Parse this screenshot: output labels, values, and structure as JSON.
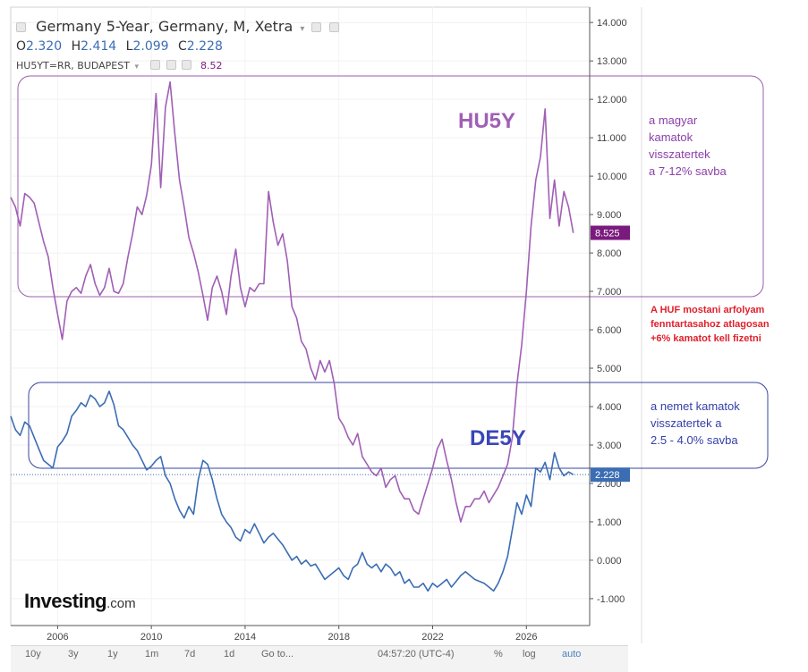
{
  "header": {
    "title": "Germany 5-Year, Germany, M, Xetra",
    "ohlc": [
      {
        "label": "O",
        "value": "2.320"
      },
      {
        "label": "H",
        "value": "2.414"
      },
      {
        "label": "L",
        "value": "2.099"
      },
      {
        "label": "C",
        "value": "2.228"
      }
    ],
    "sub_title": "HU5YT=RR, BUDAPEST",
    "sub_value": "8.52"
  },
  "chart_data": {
    "type": "line",
    "xlim": [
      2004.0,
      2028.7
    ],
    "ylim": [
      -1.7,
      14.4
    ],
    "yticks": [
      "14.000",
      "13.000",
      "12.000",
      "11.000",
      "10.000",
      "9.000",
      "8.000",
      "7.000",
      "6.000",
      "5.000",
      "4.000",
      "3.000",
      "2.000",
      "1.000",
      "0.000",
      "-1.000"
    ],
    "xticks": [
      "2006",
      "2010",
      "2014",
      "2018",
      "2022",
      "2026"
    ],
    "series": [
      {
        "name": "HU5Y",
        "color": "#a05fb5",
        "last_label": "8.525",
        "label_color": "#7a1a7e",
        "points": [
          [
            2004.0,
            9.45
          ],
          [
            2004.2,
            9.2
          ],
          [
            2004.4,
            8.7
          ],
          [
            2004.6,
            9.55
          ],
          [
            2004.8,
            9.45
          ],
          [
            2005.0,
            9.3
          ],
          [
            2005.2,
            8.8
          ],
          [
            2005.4,
            8.3
          ],
          [
            2005.6,
            7.9
          ],
          [
            2005.8,
            7.1
          ],
          [
            2006.0,
            6.4
          ],
          [
            2006.2,
            5.75
          ],
          [
            2006.4,
            6.75
          ],
          [
            2006.6,
            7.0
          ],
          [
            2006.8,
            7.1
          ],
          [
            2007.0,
            6.95
          ],
          [
            2007.2,
            7.4
          ],
          [
            2007.4,
            7.7
          ],
          [
            2007.6,
            7.2
          ],
          [
            2007.8,
            6.9
          ],
          [
            2008.0,
            7.1
          ],
          [
            2008.2,
            7.6
          ],
          [
            2008.4,
            7.0
          ],
          [
            2008.6,
            6.95
          ],
          [
            2008.8,
            7.2
          ],
          [
            2009.0,
            7.9
          ],
          [
            2009.2,
            8.5
          ],
          [
            2009.4,
            9.2
          ],
          [
            2009.6,
            9.0
          ],
          [
            2009.8,
            9.5
          ],
          [
            2010.0,
            10.3
          ],
          [
            2010.2,
            12.15
          ],
          [
            2010.4,
            9.7
          ],
          [
            2010.6,
            11.8
          ],
          [
            2010.8,
            12.45
          ],
          [
            2011.0,
            11.1
          ],
          [
            2011.2,
            9.9
          ],
          [
            2011.4,
            9.2
          ],
          [
            2011.6,
            8.4
          ],
          [
            2011.8,
            8.0
          ],
          [
            2012.0,
            7.5
          ],
          [
            2012.2,
            6.9
          ],
          [
            2012.4,
            6.25
          ],
          [
            2012.6,
            7.1
          ],
          [
            2012.8,
            7.4
          ],
          [
            2013.0,
            7.0
          ],
          [
            2013.2,
            6.4
          ],
          [
            2013.4,
            7.4
          ],
          [
            2013.6,
            8.1
          ],
          [
            2013.8,
            7.1
          ],
          [
            2014.0,
            6.6
          ],
          [
            2014.2,
            7.1
          ],
          [
            2014.4,
            7.0
          ],
          [
            2014.6,
            7.2
          ],
          [
            2014.8,
            7.2
          ],
          [
            2015.0,
            9.6
          ],
          [
            2015.2,
            8.8
          ],
          [
            2015.4,
            8.2
          ],
          [
            2015.6,
            8.5
          ],
          [
            2015.8,
            7.8
          ],
          [
            2016.0,
            6.6
          ],
          [
            2016.2,
            6.3
          ],
          [
            2016.4,
            5.7
          ],
          [
            2016.6,
            5.5
          ],
          [
            2016.8,
            5.0
          ],
          [
            2017.0,
            4.7
          ],
          [
            2017.2,
            5.2
          ],
          [
            2017.4,
            4.9
          ],
          [
            2017.6,
            5.2
          ],
          [
            2017.8,
            4.6
          ],
          [
            2018.0,
            3.7
          ],
          [
            2018.2,
            3.5
          ],
          [
            2018.4,
            3.2
          ],
          [
            2018.6,
            3.0
          ],
          [
            2018.8,
            3.3
          ],
          [
            2019.0,
            2.7
          ],
          [
            2019.2,
            2.5
          ],
          [
            2019.4,
            2.3
          ],
          [
            2019.6,
            2.2
          ],
          [
            2019.8,
            2.4
          ],
          [
            2020.0,
            1.9
          ],
          [
            2020.2,
            2.1
          ],
          [
            2020.4,
            2.2
          ],
          [
            2020.6,
            1.8
          ],
          [
            2020.8,
            1.6
          ],
          [
            2021.0,
            1.6
          ],
          [
            2021.2,
            1.3
          ],
          [
            2021.4,
            1.2
          ],
          [
            2021.6,
            1.6
          ],
          [
            2021.8,
            2.0
          ],
          [
            2022.0,
            2.4
          ],
          [
            2022.2,
            2.9
          ],
          [
            2022.4,
            3.15
          ],
          [
            2022.6,
            2.6
          ],
          [
            2022.8,
            2.1
          ],
          [
            2023.0,
            1.5
          ],
          [
            2023.2,
            1.0
          ],
          [
            2023.4,
            1.4
          ],
          [
            2023.6,
            1.4
          ],
          [
            2023.8,
            1.6
          ],
          [
            2024.0,
            1.6
          ],
          [
            2024.2,
            1.8
          ],
          [
            2024.4,
            1.5
          ],
          [
            2024.6,
            1.7
          ],
          [
            2024.8,
            1.9
          ],
          [
            2025.0,
            2.2
          ],
          [
            2025.2,
            2.5
          ],
          [
            2025.4,
            3.2
          ],
          [
            2025.6,
            4.6
          ],
          [
            2025.8,
            5.6
          ],
          [
            2026.0,
            7.0
          ],
          [
            2026.2,
            8.7
          ],
          [
            2026.4,
            9.9
          ],
          [
            2026.6,
            10.5
          ],
          [
            2026.8,
            11.75
          ],
          [
            2027.0,
            8.9
          ],
          [
            2027.2,
            9.9
          ],
          [
            2027.4,
            8.7
          ],
          [
            2027.6,
            9.6
          ],
          [
            2027.8,
            9.2
          ],
          [
            2028.0,
            8.52
          ]
        ]
      },
      {
        "name": "DE5Y",
        "color": "#3b6db3",
        "last_label": "2.228",
        "label_color": "#3b6db3",
        "points": [
          [
            2004.0,
            3.75
          ],
          [
            2004.2,
            3.4
          ],
          [
            2004.4,
            3.25
          ],
          [
            2004.6,
            3.6
          ],
          [
            2004.8,
            3.5
          ],
          [
            2005.0,
            3.2
          ],
          [
            2005.2,
            2.9
          ],
          [
            2005.4,
            2.6
          ],
          [
            2005.6,
            2.5
          ],
          [
            2005.8,
            2.4
          ],
          [
            2006.0,
            2.95
          ],
          [
            2006.2,
            3.1
          ],
          [
            2006.4,
            3.3
          ],
          [
            2006.6,
            3.75
          ],
          [
            2006.8,
            3.9
          ],
          [
            2007.0,
            4.1
          ],
          [
            2007.2,
            4.0
          ],
          [
            2007.4,
            4.3
          ],
          [
            2007.6,
            4.2
          ],
          [
            2007.8,
            4.0
          ],
          [
            2008.0,
            4.1
          ],
          [
            2008.2,
            4.4
          ],
          [
            2008.4,
            4.05
          ],
          [
            2008.6,
            3.5
          ],
          [
            2008.8,
            3.4
          ],
          [
            2009.0,
            3.2
          ],
          [
            2009.2,
            3.0
          ],
          [
            2009.4,
            2.85
          ],
          [
            2009.6,
            2.6
          ],
          [
            2009.8,
            2.35
          ],
          [
            2010.0,
            2.45
          ],
          [
            2010.2,
            2.6
          ],
          [
            2010.4,
            2.7
          ],
          [
            2010.6,
            2.2
          ],
          [
            2010.8,
            2.0
          ],
          [
            2011.0,
            1.6
          ],
          [
            2011.2,
            1.3
          ],
          [
            2011.4,
            1.1
          ],
          [
            2011.6,
            1.4
          ],
          [
            2011.8,
            1.2
          ],
          [
            2012.0,
            2.1
          ],
          [
            2012.2,
            2.6
          ],
          [
            2012.4,
            2.5
          ],
          [
            2012.6,
            2.1
          ],
          [
            2012.8,
            1.6
          ],
          [
            2013.0,
            1.2
          ],
          [
            2013.2,
            1.0
          ],
          [
            2013.4,
            0.85
          ],
          [
            2013.6,
            0.6
          ],
          [
            2013.8,
            0.5
          ],
          [
            2014.0,
            0.8
          ],
          [
            2014.2,
            0.7
          ],
          [
            2014.4,
            0.95
          ],
          [
            2014.6,
            0.7
          ],
          [
            2014.8,
            0.45
          ],
          [
            2015.0,
            0.6
          ],
          [
            2015.2,
            0.7
          ],
          [
            2015.4,
            0.55
          ],
          [
            2015.6,
            0.4
          ],
          [
            2015.8,
            0.2
          ],
          [
            2016.0,
            0.0
          ],
          [
            2016.2,
            0.1
          ],
          [
            2016.4,
            -0.1
          ],
          [
            2016.6,
            0.0
          ],
          [
            2016.8,
            -0.15
          ],
          [
            2017.0,
            -0.1
          ],
          [
            2017.2,
            -0.3
          ],
          [
            2017.4,
            -0.5
          ],
          [
            2017.6,
            -0.4
          ],
          [
            2017.8,
            -0.3
          ],
          [
            2018.0,
            -0.2
          ],
          [
            2018.2,
            -0.4
          ],
          [
            2018.4,
            -0.5
          ],
          [
            2018.6,
            -0.2
          ],
          [
            2018.8,
            -0.1
          ],
          [
            2019.0,
            0.2
          ],
          [
            2019.2,
            -0.1
          ],
          [
            2019.4,
            -0.2
          ],
          [
            2019.6,
            -0.1
          ],
          [
            2019.8,
            -0.3
          ],
          [
            2020.0,
            -0.1
          ],
          [
            2020.2,
            -0.2
          ],
          [
            2020.4,
            -0.4
          ],
          [
            2020.6,
            -0.3
          ],
          [
            2020.8,
            -0.6
          ],
          [
            2021.0,
            -0.5
          ],
          [
            2021.2,
            -0.7
          ],
          [
            2021.4,
            -0.7
          ],
          [
            2021.6,
            -0.6
          ],
          [
            2021.8,
            -0.8
          ],
          [
            2022.0,
            -0.6
          ],
          [
            2022.2,
            -0.7
          ],
          [
            2022.4,
            -0.6
          ],
          [
            2022.6,
            -0.5
          ],
          [
            2022.8,
            -0.7
          ],
          [
            2023.0,
            -0.55
          ],
          [
            2023.2,
            -0.4
          ],
          [
            2023.4,
            -0.3
          ],
          [
            2023.6,
            -0.4
          ],
          [
            2023.8,
            -0.5
          ],
          [
            2024.0,
            -0.55
          ],
          [
            2024.2,
            -0.6
          ],
          [
            2024.4,
            -0.7
          ],
          [
            2024.6,
            -0.8
          ],
          [
            2024.8,
            -0.6
          ],
          [
            2025.0,
            -0.3
          ],
          [
            2025.2,
            0.1
          ],
          [
            2025.4,
            0.8
          ],
          [
            2025.6,
            1.5
          ],
          [
            2025.8,
            1.2
          ],
          [
            2026.0,
            1.7
          ],
          [
            2026.2,
            1.4
          ],
          [
            2026.4,
            2.4
          ],
          [
            2026.6,
            2.3
          ],
          [
            2026.8,
            2.55
          ],
          [
            2027.0,
            2.1
          ],
          [
            2027.2,
            2.8
          ],
          [
            2027.4,
            2.4
          ],
          [
            2027.6,
            2.2
          ],
          [
            2027.8,
            2.3
          ],
          [
            2028.0,
            2.23
          ]
        ]
      }
    ]
  },
  "annotations": {
    "hu_label": "HU5Y",
    "de_label": "DE5Y",
    "hu_note": [
      "a magyar",
      "kamatok",
      "visszatertek",
      "a 7-12% savba"
    ],
    "huf_note": [
      "A HUF mostani arfolyam",
      "fenntartasahoz atlagosan",
      "+6% kamatot kell fizetni"
    ],
    "de_note": [
      "a nemet kamatok",
      "visszatertek a",
      "2.5 - 4.0% savba"
    ]
  },
  "logo": {
    "main": "Investing",
    "suffix": ".com"
  },
  "bottom_bar": {
    "ranges": [
      "10y",
      "3y",
      "1y",
      "1m",
      "7d",
      "1d"
    ],
    "goto": "Go to...",
    "time": "04:57:20 (UTC-4)",
    "pct": "%",
    "log": "log",
    "auto": "auto"
  },
  "colors": {
    "hu": "#a05fb5",
    "de": "#3b6db3",
    "de_label": "#3a46b8",
    "hu_note": "#8b3fa8",
    "huf_note": "#e0202c",
    "de_note": "#343fa8"
  }
}
